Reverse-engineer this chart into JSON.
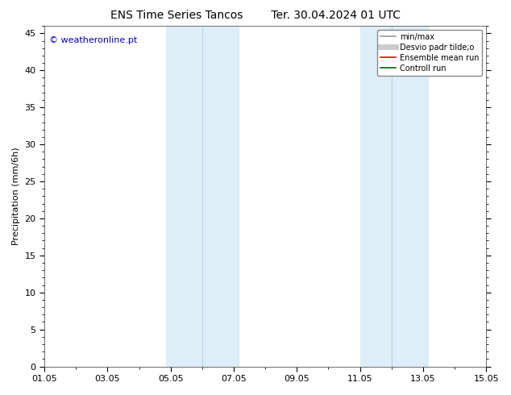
{
  "title_left": "ENS Time Series Tancos",
  "title_right": "Ter. 30.04.2024 01 UTC",
  "ylabel": "Precipitation (mm/6h)",
  "watermark": "© weatheronline.pt",
  "watermark_color": "#0000cc",
  "ylim": [
    0,
    46
  ],
  "yticks": [
    0,
    5,
    10,
    15,
    20,
    25,
    30,
    35,
    40,
    45
  ],
  "xlim": [
    0,
    14
  ],
  "xtick_labels": [
    "01.05",
    "03.05",
    "05.05",
    "07.05",
    "09.05",
    "11.05",
    "13.05",
    "15.05"
  ],
  "xtick_positions": [
    0,
    2,
    4,
    6,
    8,
    10,
    12,
    14
  ],
  "shaded_bands": [
    [
      3.5,
      4.5
    ],
    [
      5.5,
      6.5
    ],
    [
      10.5,
      11.5
    ],
    [
      11.5,
      12.5
    ]
  ],
  "shade_color": "#ddeef8",
  "shade_color2": "#cce4f4",
  "legend_entries": [
    {
      "label": "min/max",
      "color": "#999999",
      "lw": 1.2
    },
    {
      "label": "Desvio padr tilde;o",
      "color": "#cccccc",
      "lw": 5
    },
    {
      "label": "Ensemble mean run",
      "color": "#ff0000",
      "lw": 1.2
    },
    {
      "label": "Controll run",
      "color": "#006600",
      "lw": 1.2
    }
  ],
  "bg_color": "#ffffff",
  "title_fontsize": 10,
  "label_fontsize": 8,
  "tick_fontsize": 8,
  "watermark_fontsize": 8
}
